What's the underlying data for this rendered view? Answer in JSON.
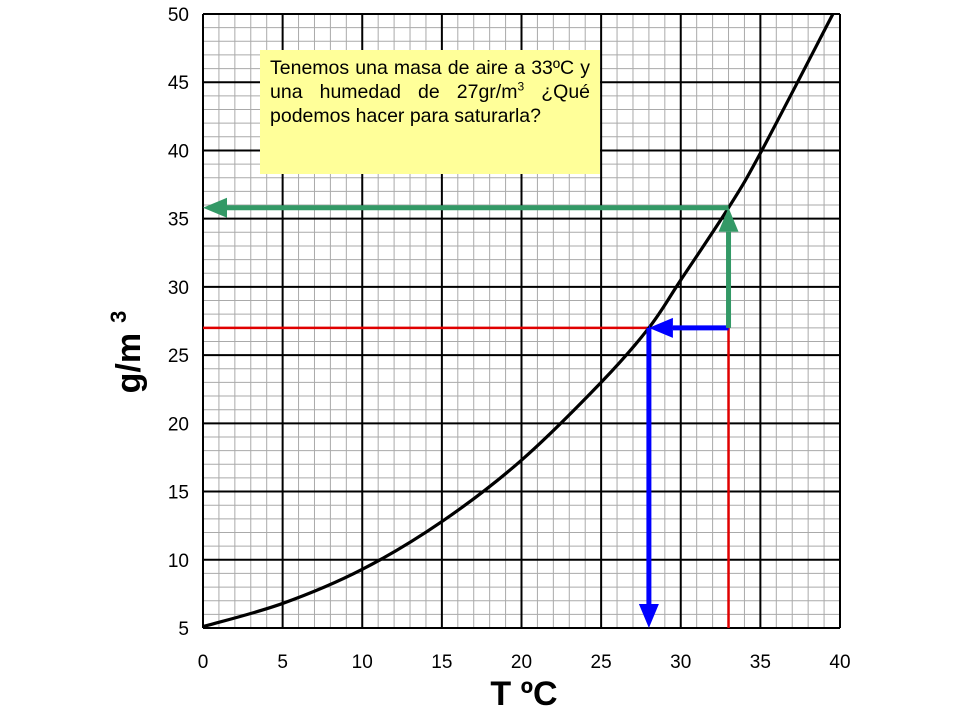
{
  "chart_data": {
    "type": "line",
    "title": "",
    "xlabel": "T ºC",
    "ylabel_base": "g/m",
    "ylabel_exp": "3",
    "xlim": [
      0,
      40
    ],
    "ylim": [
      5,
      50
    ],
    "x_ticks": [
      0,
      5,
      10,
      15,
      20,
      25,
      30,
      35,
      40
    ],
    "y_ticks": [
      5,
      10,
      15,
      20,
      25,
      30,
      35,
      40,
      45,
      50
    ],
    "x_tick_labels": [
      "0",
      "5",
      "10",
      "15",
      "20",
      "25",
      "30",
      "35",
      "40"
    ],
    "y_tick_labels": [
      "5",
      "10",
      "15",
      "20",
      "25",
      "30",
      "35",
      "40",
      "45",
      "50"
    ],
    "grid": true,
    "series": [
      {
        "x": [
          0,
          5,
          10,
          15,
          20,
          25,
          28,
          30,
          33,
          35,
          40
        ],
        "y": [
          5.1,
          6.8,
          9.3,
          12.8,
          17.3,
          23.0,
          27.0,
          30.5,
          35.8,
          39.8,
          51.0
        ],
        "color": "#000000"
      }
    ],
    "annotations": {
      "reference_lines": {
        "color": "#e00000",
        "temperature": 33,
        "humidity": 27
      },
      "cooling_arrow": {
        "color": "#0000ff",
        "from": [
          33,
          27
        ],
        "to": [
          28,
          27
        ],
        "then_down_to": 5
      },
      "humidify_arrow": {
        "color": "#339966",
        "from": [
          33,
          27
        ],
        "to": [
          33,
          35.8
        ],
        "then_left_to": 0
      }
    }
  },
  "note": {
    "text_before_sup": "Tenemos una masa de aire a 33ºC y una humedad de 27gr/m",
    "sup": "3",
    "text_after_sup": " ¿Qué podemos hacer para saturarla?"
  }
}
